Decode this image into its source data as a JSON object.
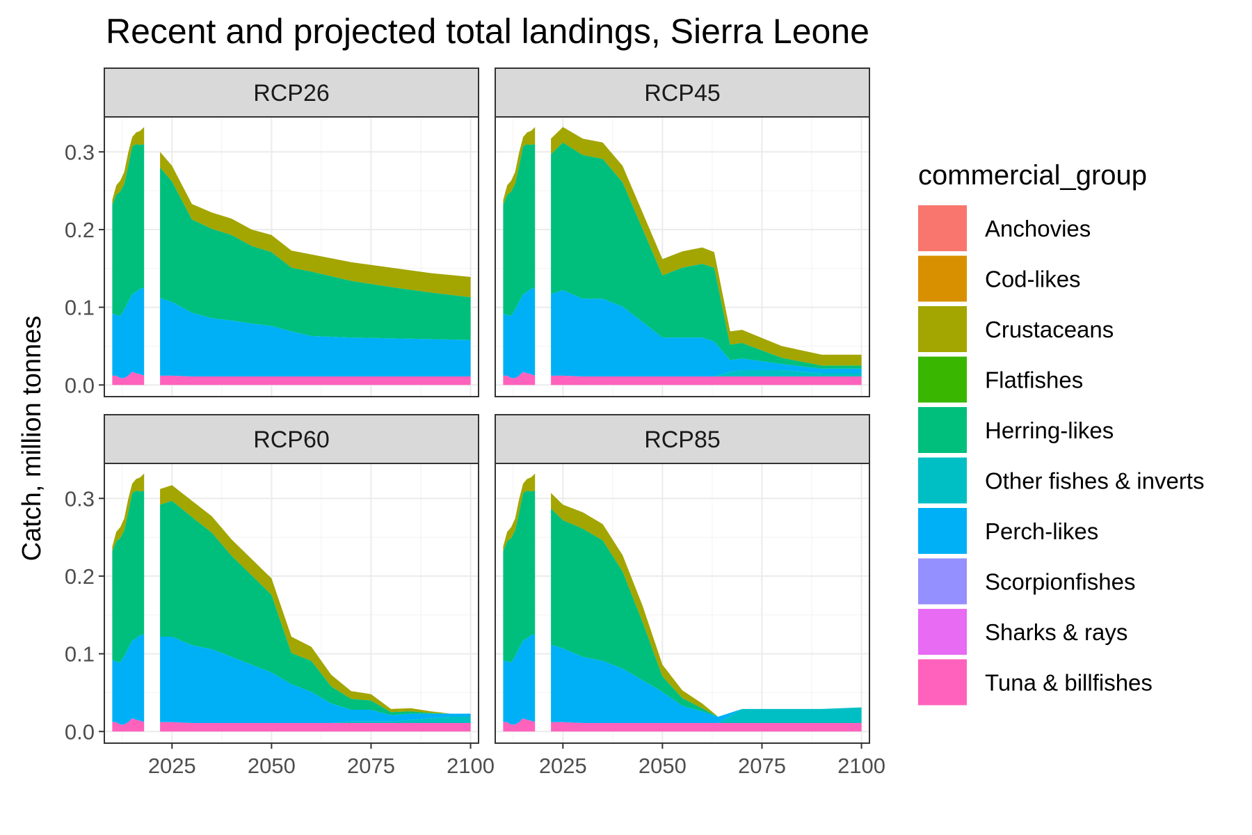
{
  "chart_data": {
    "type": "area",
    "title": "Recent and projected total landings, Sierra Leone",
    "ylabel": "Catch, million tonnes",
    "xlabel": "",
    "xlim": [
      2008,
      2102
    ],
    "ylim": [
      -0.015,
      0.345
    ],
    "x_ticks": [
      2025,
      2050,
      2075,
      2100
    ],
    "y_ticks": [
      0.0,
      0.1,
      0.2,
      0.3
    ],
    "y_tick_labels": [
      "0.0",
      "0.1",
      "0.2",
      "0.3"
    ],
    "legend_title": "commercial_group",
    "legend_position": "right",
    "grid": true,
    "groups": [
      {
        "name": "Anchovies",
        "color": "#F8766D"
      },
      {
        "name": "Cod-likes",
        "color": "#D89000"
      },
      {
        "name": "Crustaceans",
        "color": "#A3A500"
      },
      {
        "name": "Flatfishes",
        "color": "#39B600"
      },
      {
        "name": "Herring-likes",
        "color": "#00BF7D"
      },
      {
        "name": "Other fishes & inverts",
        "color": "#00BFC4"
      },
      {
        "name": "Perch-likes",
        "color": "#00B0F6"
      },
      {
        "name": "Scorpionfishes",
        "color": "#9590FF"
      },
      {
        "name": "Sharks & rays",
        "color": "#E76BF3"
      },
      {
        "name": "Tuna & billfishes",
        "color": "#FF62BC"
      }
    ],
    "stack_order_bottom_to_top": [
      "Tuna & billfishes",
      "Other fishes & inverts",
      "Perch-likes",
      "Herring-likes",
      "Crustaceans"
    ],
    "historical": {
      "x": [
        2010,
        2011,
        2012,
        2013,
        2014,
        2015,
        2016,
        2017,
        2018
      ],
      "Tuna & billfishes": [
        0.012,
        0.012,
        0.009,
        0.009,
        0.012,
        0.017,
        0.015,
        0.014,
        0.012
      ],
      "Perch-likes": [
        0.08,
        0.078,
        0.08,
        0.088,
        0.095,
        0.1,
        0.105,
        0.11,
        0.113
      ],
      "Herring-likes": [
        0.14,
        0.155,
        0.16,
        0.162,
        0.175,
        0.19,
        0.19,
        0.185,
        0.185
      ],
      "Crustaceans": [
        0.006,
        0.012,
        0.014,
        0.015,
        0.017,
        0.012,
        0.015,
        0.018,
        0.022
      ]
    },
    "panels": [
      {
        "label": "RCP26",
        "x": [
          2022,
          2025,
          2030,
          2035,
          2040,
          2045,
          2050,
          2055,
          2060,
          2070,
          2080,
          2090,
          2100
        ],
        "Tuna & billfishes": [
          0.012,
          0.012,
          0.011,
          0.011,
          0.011,
          0.011,
          0.011,
          0.011,
          0.011,
          0.011,
          0.011,
          0.011,
          0.011
        ],
        "Other fishes & inverts": [
          0.0,
          0.0,
          0.0,
          0.0,
          0.0,
          0.0,
          0.0,
          0.0,
          0.0,
          0.0,
          0.0,
          0.0,
          0.0
        ],
        "Perch-likes": [
          0.1,
          0.095,
          0.082,
          0.075,
          0.072,
          0.068,
          0.065,
          0.058,
          0.052,
          0.05,
          0.049,
          0.048,
          0.047
        ],
        "Herring-likes": [
          0.168,
          0.155,
          0.12,
          0.115,
          0.11,
          0.1,
          0.095,
          0.082,
          0.083,
          0.073,
          0.066,
          0.06,
          0.055
        ],
        "Crustaceans": [
          0.02,
          0.02,
          0.02,
          0.021,
          0.021,
          0.021,
          0.022,
          0.022,
          0.022,
          0.024,
          0.025,
          0.025,
          0.026
        ]
      },
      {
        "label": "RCP45",
        "x": [
          2022,
          2025,
          2030,
          2035,
          2040,
          2045,
          2050,
          2055,
          2060,
          2063,
          2067,
          2070,
          2080,
          2090,
          2100
        ],
        "Tuna & billfishes": [
          0.012,
          0.012,
          0.011,
          0.011,
          0.011,
          0.011,
          0.011,
          0.011,
          0.011,
          0.011,
          0.011,
          0.011,
          0.011,
          0.011,
          0.011
        ],
        "Other fishes & inverts": [
          0.0,
          0.0,
          0.0,
          0.0,
          0.0,
          0.0,
          0.0,
          0.0,
          0.0,
          0.0,
          0.006,
          0.008,
          0.008,
          0.004,
          0.004
        ],
        "Perch-likes": [
          0.105,
          0.11,
          0.1,
          0.1,
          0.09,
          0.07,
          0.05,
          0.05,
          0.05,
          0.045,
          0.015,
          0.015,
          0.008,
          0.006,
          0.006
        ],
        "Herring-likes": [
          0.18,
          0.19,
          0.185,
          0.18,
          0.16,
          0.12,
          0.08,
          0.09,
          0.095,
          0.095,
          0.02,
          0.02,
          0.008,
          0.004,
          0.004
        ],
        "Crustaceans": [
          0.02,
          0.02,
          0.021,
          0.021,
          0.021,
          0.021,
          0.021,
          0.021,
          0.021,
          0.02,
          0.017,
          0.017,
          0.015,
          0.014,
          0.014
        ]
      },
      {
        "label": "RCP60",
        "x": [
          2022,
          2025,
          2030,
          2035,
          2040,
          2045,
          2050,
          2055,
          2060,
          2065,
          2070,
          2075,
          2080,
          2085,
          2090,
          2095,
          2100
        ],
        "Tuna & billfishes": [
          0.012,
          0.012,
          0.011,
          0.011,
          0.011,
          0.011,
          0.011,
          0.011,
          0.011,
          0.011,
          0.011,
          0.011,
          0.011,
          0.011,
          0.011,
          0.011,
          0.011
        ],
        "Other fishes & inverts": [
          0.0,
          0.0,
          0.0,
          0.0,
          0.0,
          0.0,
          0.0,
          0.0,
          0.0,
          0.0,
          0.002,
          0.002,
          0.002,
          0.004,
          0.006,
          0.008,
          0.008
        ],
        "Perch-likes": [
          0.11,
          0.11,
          0.1,
          0.095,
          0.085,
          0.075,
          0.065,
          0.05,
          0.04,
          0.025,
          0.015,
          0.015,
          0.008,
          0.008,
          0.006,
          0.004,
          0.004
        ],
        "Herring-likes": [
          0.17,
          0.175,
          0.165,
          0.15,
          0.13,
          0.115,
          0.1,
          0.04,
          0.04,
          0.022,
          0.014,
          0.012,
          0.004,
          0.003,
          0.001,
          0.0,
          0.0
        ],
        "Crustaceans": [
          0.02,
          0.02,
          0.021,
          0.021,
          0.021,
          0.021,
          0.021,
          0.021,
          0.018,
          0.015,
          0.01,
          0.008,
          0.004,
          0.004,
          0.002,
          0.0,
          0.0
        ]
      },
      {
        "label": "RCP85",
        "x": [
          2022,
          2025,
          2030,
          2035,
          2040,
          2045,
          2050,
          2055,
          2060,
          2064,
          2070,
          2080,
          2090,
          2100
        ],
        "Tuna & billfishes": [
          0.012,
          0.012,
          0.011,
          0.011,
          0.011,
          0.011,
          0.011,
          0.011,
          0.011,
          0.011,
          0.011,
          0.011,
          0.011,
          0.011
        ],
        "Other fishes & inverts": [
          0.0,
          0.0,
          0.0,
          0.0,
          0.0,
          0.0,
          0.0,
          0.0,
          0.0,
          0.0,
          0.018,
          0.018,
          0.018,
          0.02
        ],
        "Perch-likes": [
          0.1,
          0.095,
          0.085,
          0.08,
          0.07,
          0.055,
          0.04,
          0.022,
          0.015,
          0.008,
          0.0,
          0.0,
          0.0,
          0.0
        ],
        "Herring-likes": [
          0.175,
          0.165,
          0.165,
          0.155,
          0.125,
          0.075,
          0.02,
          0.01,
          0.004,
          0.0,
          0.0,
          0.0,
          0.0,
          0.0
        ],
        "Crustaceans": [
          0.02,
          0.02,
          0.021,
          0.021,
          0.021,
          0.021,
          0.015,
          0.01,
          0.006,
          0.0,
          0.0,
          0.0,
          0.0,
          0.0
        ]
      }
    ]
  }
}
